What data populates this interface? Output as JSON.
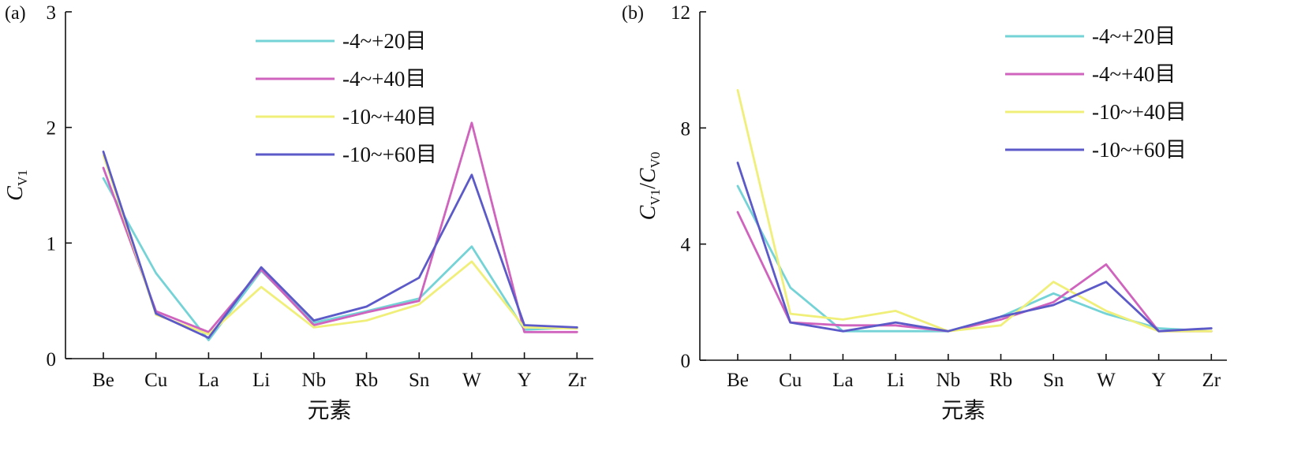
{
  "colors": {
    "s20": "#74d3d6",
    "s40": "#cf63bd",
    "s1040": "#f0ef7a",
    "s1060": "#5c5ac8"
  },
  "chart_data": [
    {
      "panel_label": "(a)",
      "type": "line",
      "categories": [
        "Be",
        "Cu",
        "La",
        "Li",
        "Nb",
        "Rb",
        "Sn",
        "W",
        "Y",
        "Zr"
      ],
      "ylim": [
        0,
        3
      ],
      "yticks": [
        0,
        1,
        2,
        3
      ],
      "ytick_labels": [
        "0",
        "1",
        "2",
        "3"
      ],
      "ylabel_main": "C",
      "ylabel_sub": "V1",
      "ylabel_rest": "",
      "ylabel_rest_sub": "",
      "xlabel": "元素",
      "grid": false,
      "legend_position": "top-center",
      "series": [
        {
          "name": "-4~+20目",
          "color_key": "s20",
          "values": [
            1.56,
            0.74,
            0.16,
            0.76,
            0.31,
            0.41,
            0.52,
            0.97,
            0.25,
            0.27
          ]
        },
        {
          "name": "-4~+40目",
          "color_key": "s40",
          "values": [
            1.65,
            0.41,
            0.23,
            0.77,
            0.29,
            0.4,
            0.5,
            2.04,
            0.23,
            0.23
          ]
        },
        {
          "name": "-10~+40目",
          "color_key": "s1040",
          "values": [
            1.76,
            0.38,
            0.21,
            0.62,
            0.27,
            0.33,
            0.47,
            0.84,
            0.27,
            0.26
          ]
        },
        {
          "name": "-10~+60目",
          "color_key": "s1060",
          "values": [
            1.79,
            0.39,
            0.18,
            0.79,
            0.33,
            0.45,
            0.7,
            1.59,
            0.29,
            0.27
          ]
        }
      ]
    },
    {
      "panel_label": "(b)",
      "type": "line",
      "categories": [
        "Be",
        "Cu",
        "La",
        "Li",
        "Nb",
        "Rb",
        "Sn",
        "W",
        "Y",
        "Zr"
      ],
      "ylim": [
        0,
        12
      ],
      "yticks": [
        0,
        4,
        8,
        12
      ],
      "ytick_labels": [
        "0",
        "4",
        "8",
        "12"
      ],
      "ylabel_main": "C",
      "ylabel_sub": "V1",
      "ylabel_rest": "/C",
      "ylabel_rest_sub": "V0",
      "xlabel": "元素",
      "grid": false,
      "legend_position": "top-right",
      "series": [
        {
          "name": "-4~+20目",
          "color_key": "s20",
          "values": [
            6.0,
            2.5,
            1.0,
            1.0,
            1.0,
            1.5,
            2.3,
            1.6,
            1.1,
            1.0
          ]
        },
        {
          "name": "-4~+40目",
          "color_key": "s40",
          "values": [
            5.1,
            1.3,
            1.2,
            1.2,
            1.0,
            1.4,
            2.0,
            3.3,
            1.0,
            1.0
          ]
        },
        {
          "name": "-10~+40目",
          "color_key": "s1040",
          "values": [
            9.3,
            1.6,
            1.4,
            1.7,
            1.0,
            1.2,
            2.7,
            1.7,
            1.0,
            1.0
          ]
        },
        {
          "name": "-10~+60目",
          "color_key": "s1060",
          "values": [
            6.8,
            1.3,
            1.0,
            1.3,
            1.0,
            1.5,
            1.9,
            2.7,
            1.0,
            1.1
          ]
        }
      ]
    }
  ]
}
